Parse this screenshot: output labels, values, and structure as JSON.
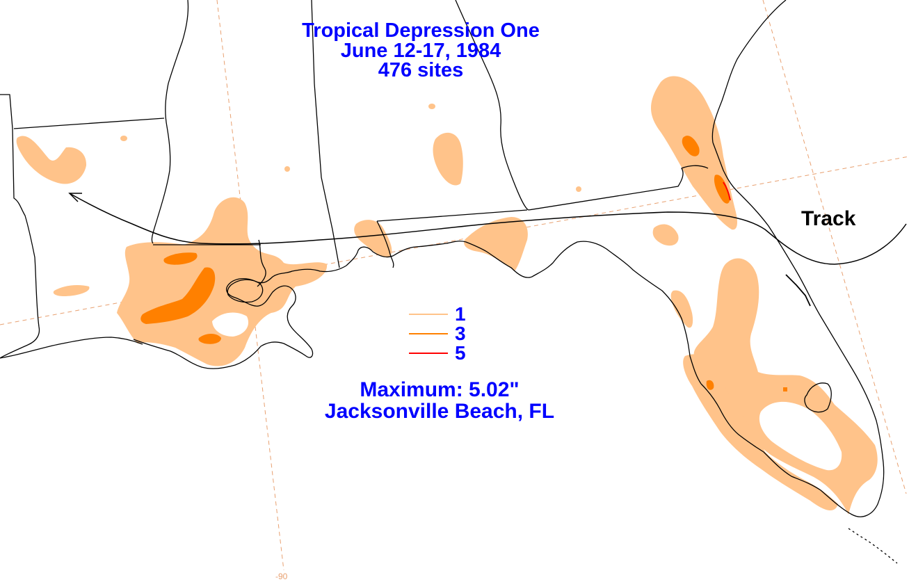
{
  "title": {
    "line1": "Tropical Depression One",
    "line2": "June 12-17, 1984",
    "line3": "476 sites"
  },
  "maximum": {
    "line1": "Maximum: 5.02\"",
    "line2": "Jacksonville Beach, FL"
  },
  "track_label": "Track",
  "legend": [
    {
      "value": "1",
      "color": "#ffc38a"
    },
    {
      "value": "3",
      "color": "#ff8000"
    },
    {
      "value": "5",
      "color": "#ff0000"
    }
  ],
  "longitude_label": "-90",
  "colors": {
    "rain_1": "#ffc38a",
    "rain_3": "#ff8000",
    "rain_5": "#ff0000",
    "text": "#0000ff",
    "grid": "#e8a070",
    "boundary": "#000000"
  }
}
